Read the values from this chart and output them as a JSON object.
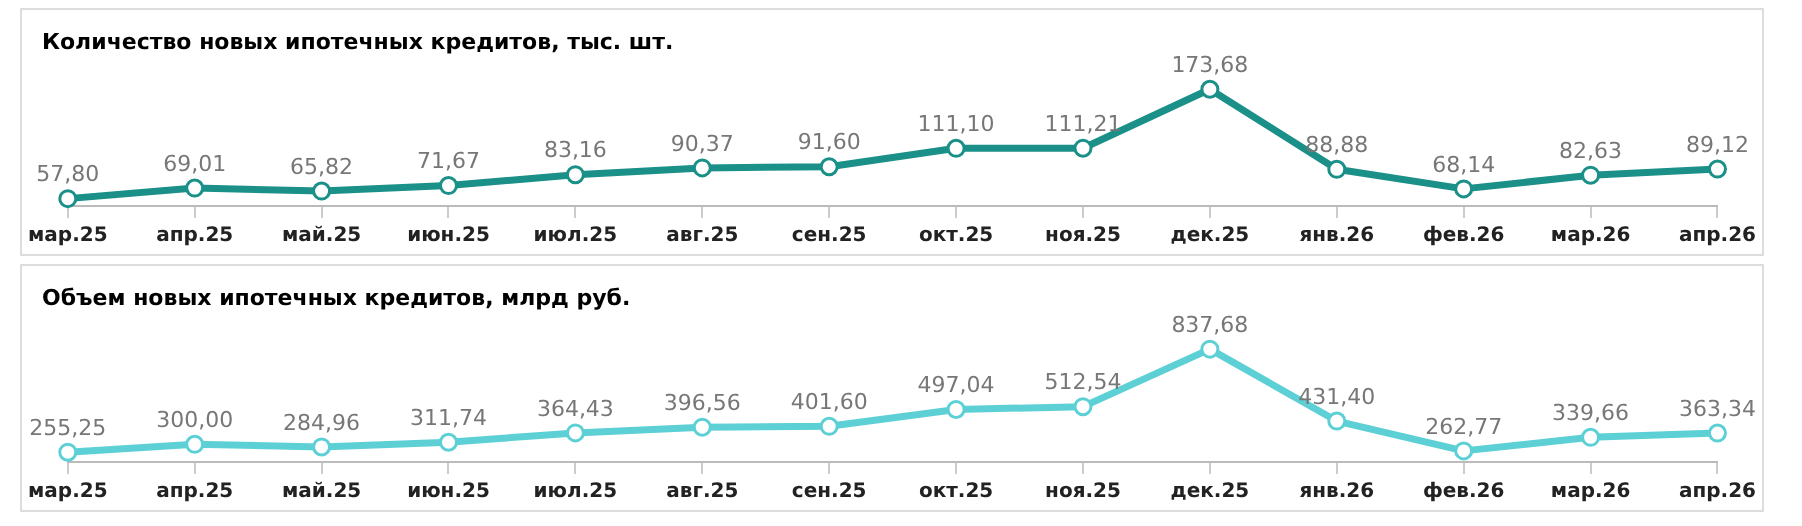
{
  "chart_data": [
    {
      "type": "line",
      "title": "Количество новых ипотечных кредитов, тыс. шт.",
      "categories": [
        "мар.25",
        "апр.25",
        "май.25",
        "июн.25",
        "июл.25",
        "авг.25",
        "сен.25",
        "окт.25",
        "ноя.25",
        "дек.25",
        "янв.26",
        "фев.26",
        "мар.26",
        "апр.26"
      ],
      "series": [
        {
          "color": "#1a9088",
          "values": [
            57.8,
            69.01,
            65.82,
            71.67,
            83.16,
            90.37,
            91.6,
            111.1,
            111.21,
            173.68,
            88.88,
            68.14,
            82.63,
            89.12
          ],
          "value_labels": [
            "57,80",
            "69,01",
            "65,82",
            "71,67",
            "83,16",
            "90,37",
            "91,60",
            "111,10",
            "111,21",
            "173,68",
            "88,88",
            "68,14",
            "82,63",
            "89,12"
          ]
        }
      ],
      "tick_labels": "x",
      "grid": false,
      "legend": false,
      "marker": "circle",
      "line_style": "solid"
    },
    {
      "type": "line",
      "title": "Объем новых ипотечных кредитов, млрд руб.",
      "categories": [
        "мар.25",
        "апр.25",
        "май.25",
        "июн.25",
        "июл.25",
        "авг.25",
        "сен.25",
        "окт.25",
        "ноя.25",
        "дек.25",
        "янв.26",
        "фев.26",
        "мар.26",
        "апр.26"
      ],
      "series": [
        {
          "color": "#5dd0d6",
          "values": [
            255.25,
            300.0,
            284.96,
            311.74,
            364.43,
            396.56,
            401.6,
            497.04,
            512.54,
            837.68,
            431.4,
            262.77,
            339.66,
            363.34
          ],
          "value_labels": [
            "255,25",
            "300,00",
            "284,96",
            "311,74",
            "364,43",
            "396,56",
            "401,60",
            "497,04",
            "512,54",
            "837,68",
            "431,40",
            "262,77",
            "339,66",
            "363,34"
          ]
        }
      ],
      "tick_labels": "x",
      "grid": false,
      "legend": false,
      "marker": "circle",
      "line_style": "solid"
    }
  ]
}
